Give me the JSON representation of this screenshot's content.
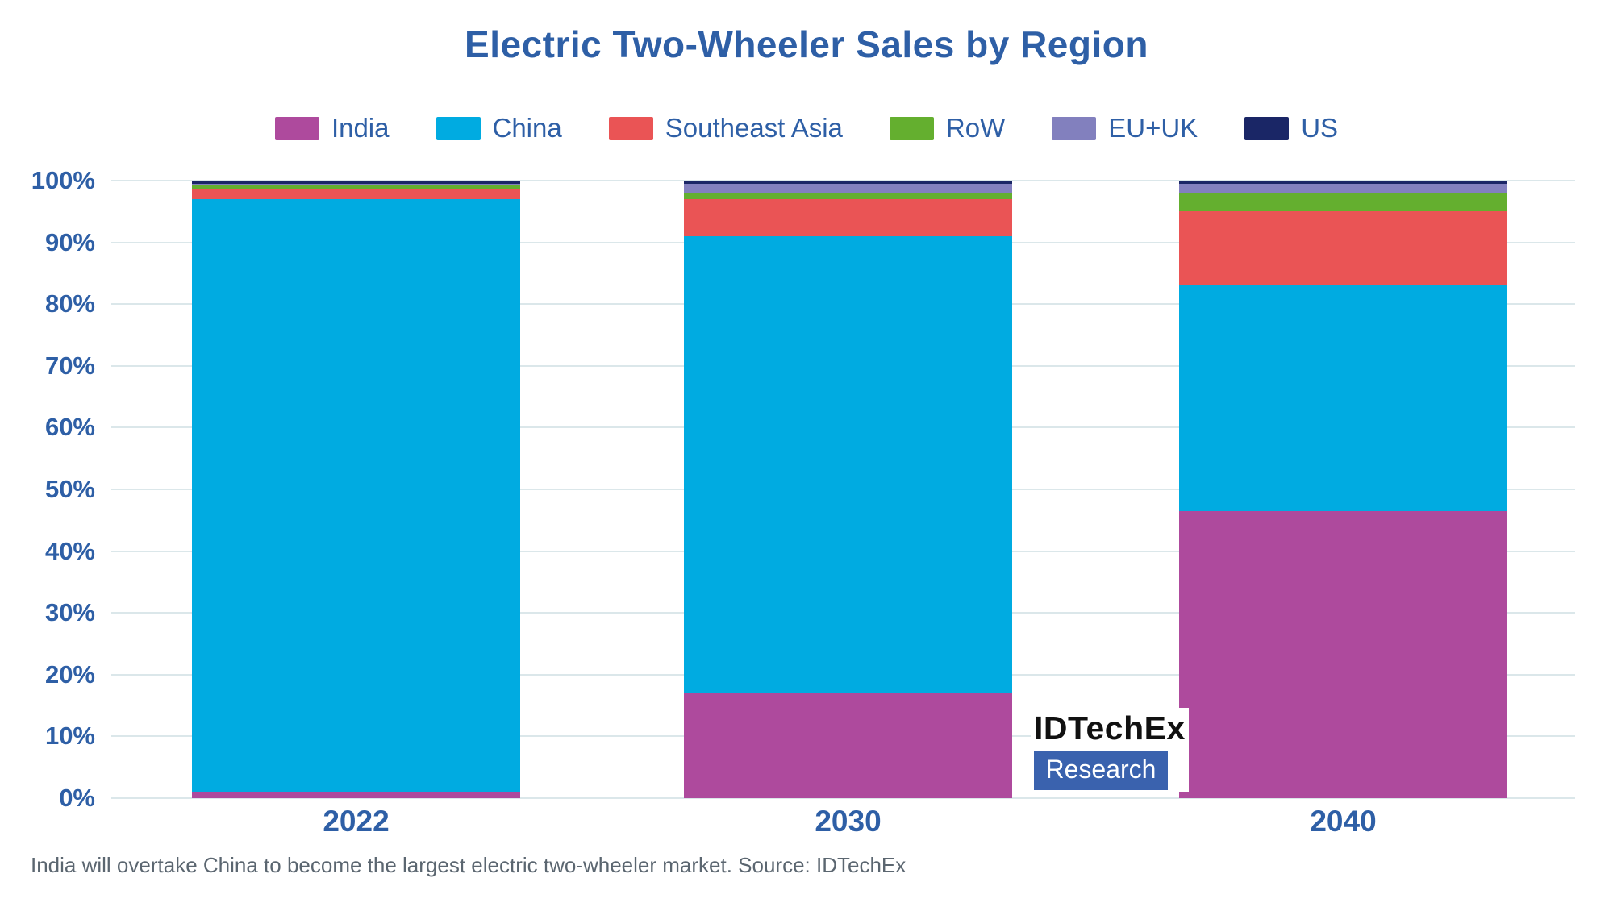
{
  "title": "Electric Two-Wheeler Sales by Region",
  "caption": "India will overtake China to become the largest electric two-wheeler market. Source: IDTechEx",
  "watermark": {
    "line1": "IDTechEx",
    "line2": "Research",
    "box_color": "#3A62AE"
  },
  "colors": {
    "title_blue": "#2E5FA6",
    "axis_label_blue": "#2E5FA6",
    "gridline": "#dbe7ea",
    "caption_gray": "#5B6670",
    "logo_blue": "#3A62AE"
  },
  "chart_data": {
    "type": "bar",
    "subtype": "100-percent-stacked-column",
    "title": "Electric Two-Wheeler Sales by Region",
    "categories": [
      "2022",
      "2030",
      "2040"
    ],
    "series": [
      {
        "name": "India",
        "color": "#AE4A9D",
        "values": [
          1.0,
          17.0,
          46.5
        ]
      },
      {
        "name": "China",
        "color": "#00ABE1",
        "values": [
          96.0,
          74.0,
          36.5
        ]
      },
      {
        "name": "Southeast Asia",
        "color": "#EA5455",
        "values": [
          1.7,
          6.0,
          12.0
        ]
      },
      {
        "name": "RoW",
        "color": "#64AF2F",
        "values": [
          0.5,
          1.0,
          3.0
        ]
      },
      {
        "name": "EU+UK",
        "color": "#8280BE",
        "values": [
          0.3,
          1.5,
          1.5
        ]
      },
      {
        "name": "US",
        "color": "#0.5",
        "values": [
          0.5,
          0.5,
          0.5
        ]
      }
    ],
    "stack_order": "bottom-to-top as listed",
    "xlabel": "",
    "ylabel": "",
    "ylim": [
      0,
      100
    ],
    "yticks": [
      "0%",
      "10%",
      "20%",
      "30%",
      "40%",
      "50%",
      "60%",
      "70%",
      "80%",
      "90%",
      "100%"
    ],
    "grid": true,
    "legend_position": "top",
    "legend_order": [
      "India",
      "China",
      "Southeast Asia",
      "RoW",
      "EU+UK",
      "US"
    ]
  }
}
